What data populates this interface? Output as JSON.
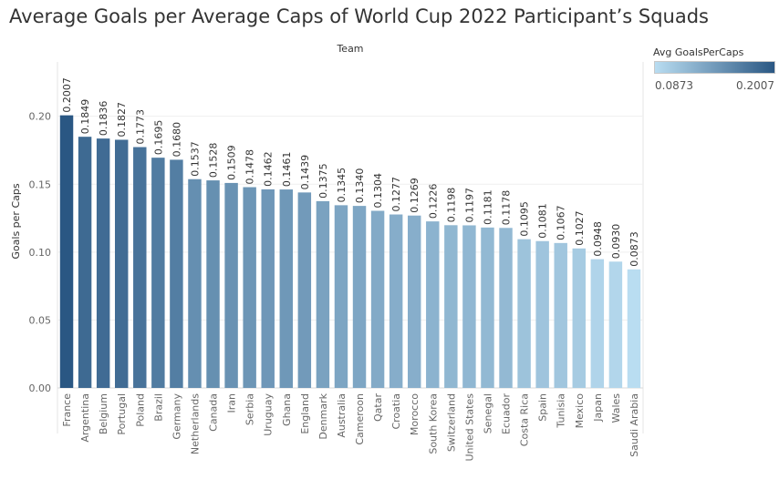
{
  "title": "Average Goals per Average Caps of World Cup 2022 Participant’s Squads",
  "legend": {
    "title": "Avg GoalsPerCaps",
    "min_label": "0.0873",
    "max_label": "0.2007",
    "color_low": "#b9ddf1",
    "color_high": "#2a5783"
  },
  "chart_data": {
    "type": "bar",
    "title": "Average Goals per Average Caps of World Cup 2022 Participant’s Squads",
    "column_header": "Team",
    "ylabel": "Goals per Caps",
    "xlabel": "",
    "ylim": [
      0,
      0.2007
    ],
    "y_ticks": [
      "0.20",
      "0.15",
      "0.10",
      "0.05",
      "0.00"
    ],
    "y_tick_values": [
      0.2,
      0.15,
      0.1,
      0.05,
      0.0
    ],
    "grid": true,
    "legend_placement": "top-right",
    "categories": [
      "France",
      "Argentina",
      "Belgium",
      "Portugal",
      "Poland",
      "Brazil",
      "Germany",
      "Netherlands",
      "Canada",
      "Iran",
      "Serbia",
      "Uruguay",
      "Ghana",
      "England",
      "Denmark",
      "Australia",
      "Cameroon",
      "Qatar",
      "Croatia",
      "Morocco",
      "South Korea",
      "Switzerland",
      "United States",
      "Senegal",
      "Ecuador",
      "Costa Rica",
      "Spain",
      "Tunisia",
      "Mexico",
      "Japan",
      "Wales",
      "Saudi Arabia"
    ],
    "values": [
      0.2007,
      0.1849,
      0.1836,
      0.1827,
      0.1773,
      0.1695,
      0.168,
      0.1537,
      0.1528,
      0.1509,
      0.1478,
      0.1462,
      0.1461,
      0.1439,
      0.1375,
      0.1345,
      0.134,
      0.1304,
      0.1277,
      0.1269,
      0.1226,
      0.1198,
      0.1197,
      0.1181,
      0.1178,
      0.1095,
      0.1081,
      0.1067,
      0.1027,
      0.0948,
      0.093,
      0.0873
    ],
    "value_labels": [
      "0.2007",
      "0.1849",
      "0.1836",
      "0.1827",
      "0.1773",
      "0.1695",
      "0.1680",
      "0.1537",
      "0.1528",
      "0.1509",
      "0.1478",
      "0.1462",
      "0.1461",
      "0.1439",
      "0.1375",
      "0.1345",
      "0.1340",
      "0.1304",
      "0.1277",
      "0.1269",
      "0.1226",
      "0.1198",
      "0.1197",
      "0.1181",
      "0.1178",
      "0.1095",
      "0.1081",
      "0.1067",
      "0.1027",
      "0.0948",
      "0.0930",
      "0.0873"
    ]
  }
}
